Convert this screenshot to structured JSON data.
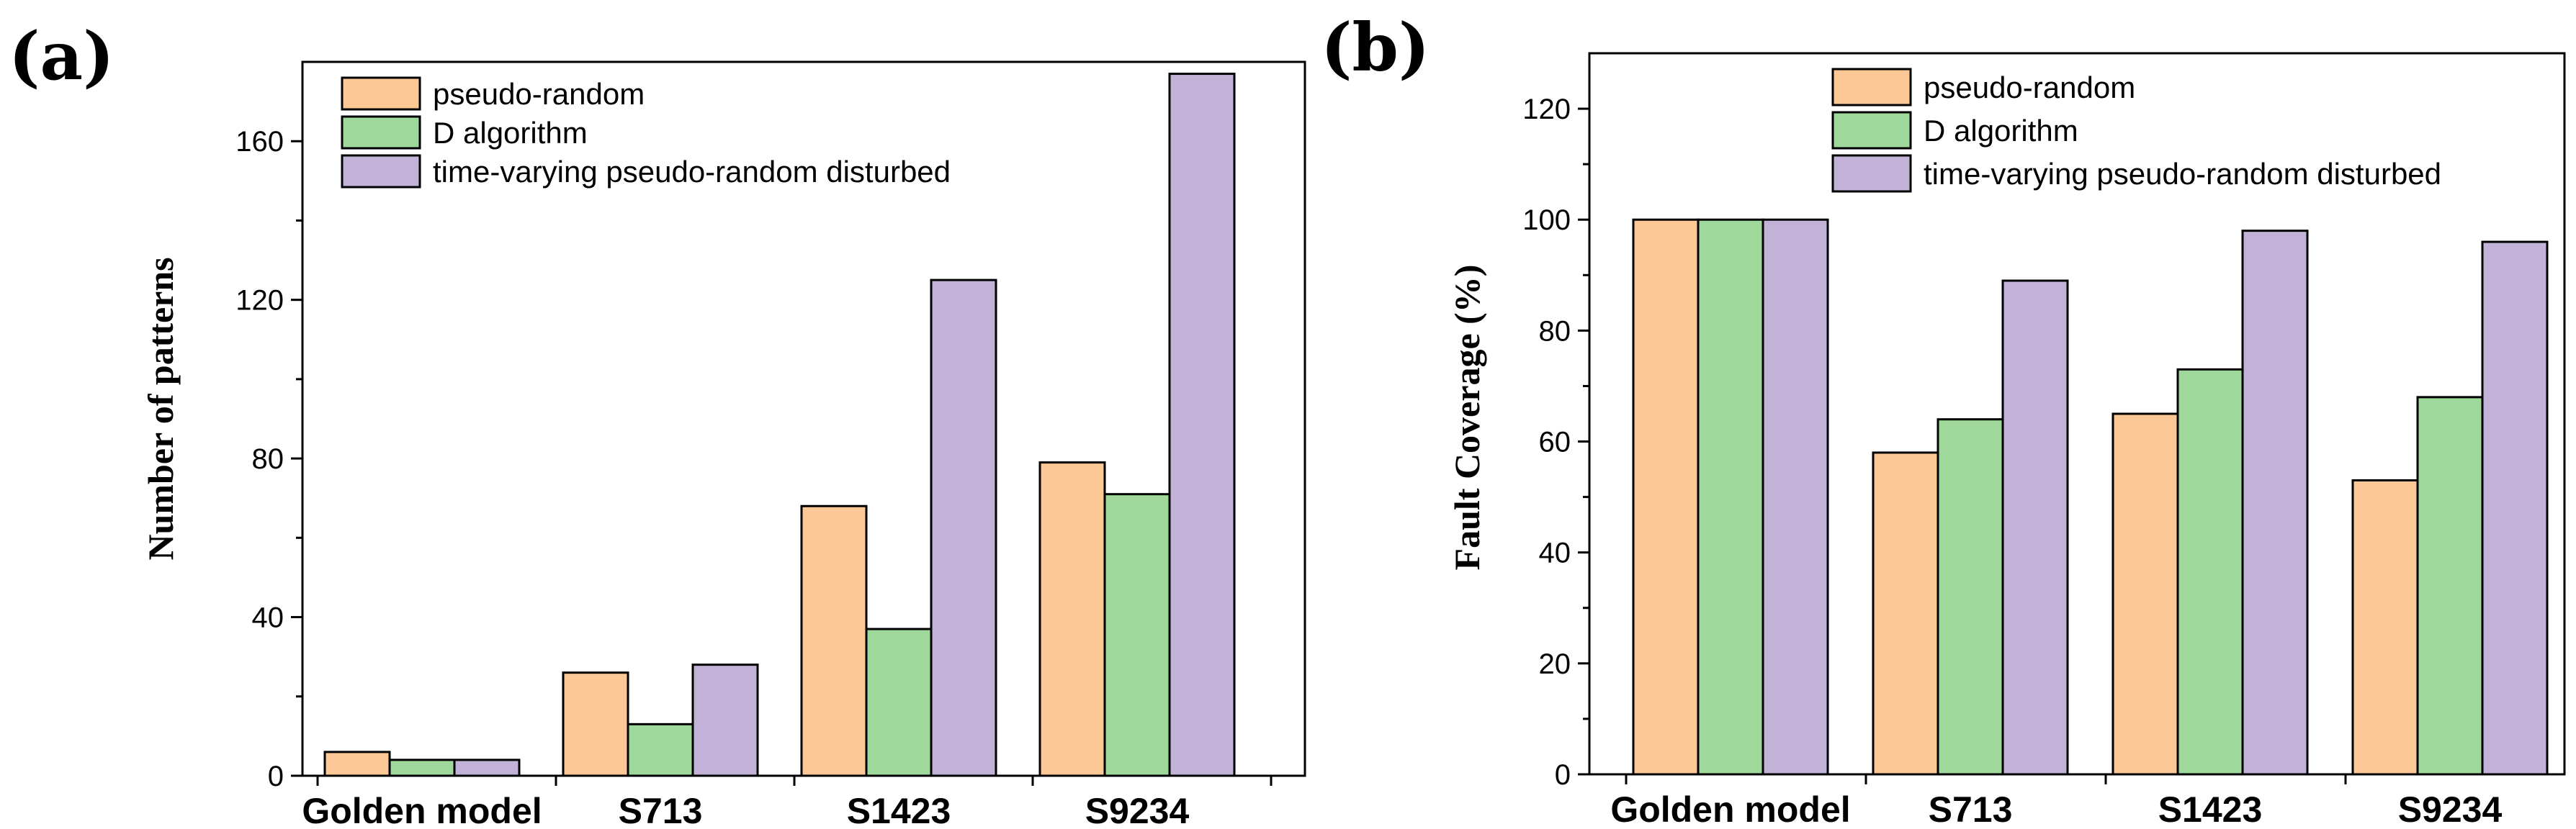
{
  "colors": {
    "pseudo_random": "#fcc896",
    "d_algorithm": "#9ed89a",
    "time_varying": "#c2b2d8",
    "axis": "#000000"
  },
  "chart_data": [
    {
      "type": "bar",
      "panel": "(a)",
      "title": "",
      "xlabel": "",
      "ylabel": "Number of patterns",
      "ylim": [
        0,
        180
      ],
      "yticks": [
        0,
        40,
        80,
        120,
        160
      ],
      "ytick_labels": [
        "0",
        "40",
        "80",
        "120",
        "160"
      ],
      "categories": [
        "Golden model",
        "S713",
        "S1423",
        "S9234"
      ],
      "series": [
        {
          "name": "pseudo-random",
          "values": [
            6,
            26,
            68,
            79
          ]
        },
        {
          "name": "D algorithm",
          "values": [
            4,
            13,
            37,
            71
          ]
        },
        {
          "name": "time-varying pseudo-random disturbed",
          "values": [
            4,
            28,
            125,
            177
          ]
        }
      ],
      "legend": "top-left",
      "grid": false
    },
    {
      "type": "bar",
      "panel": "(b)",
      "title": "",
      "xlabel": "",
      "ylabel": "Fault Coverage (%)",
      "ylim": [
        0,
        130
      ],
      "yticks": [
        0,
        20,
        40,
        60,
        80,
        100,
        120
      ],
      "ytick_labels": [
        "0",
        "20",
        "40",
        "60",
        "80",
        "100",
        "120"
      ],
      "categories": [
        "Golden model",
        "S713",
        "S1423",
        "S9234"
      ],
      "series": [
        {
          "name": "pseudo-random",
          "values": [
            100,
            58,
            65,
            53
          ]
        },
        {
          "name": "D algorithm",
          "values": [
            100,
            64,
            73,
            68
          ]
        },
        {
          "name": "time-varying pseudo-random disturbed",
          "values": [
            100,
            89,
            98,
            96
          ]
        }
      ],
      "legend": "top-right",
      "grid": false
    }
  ]
}
